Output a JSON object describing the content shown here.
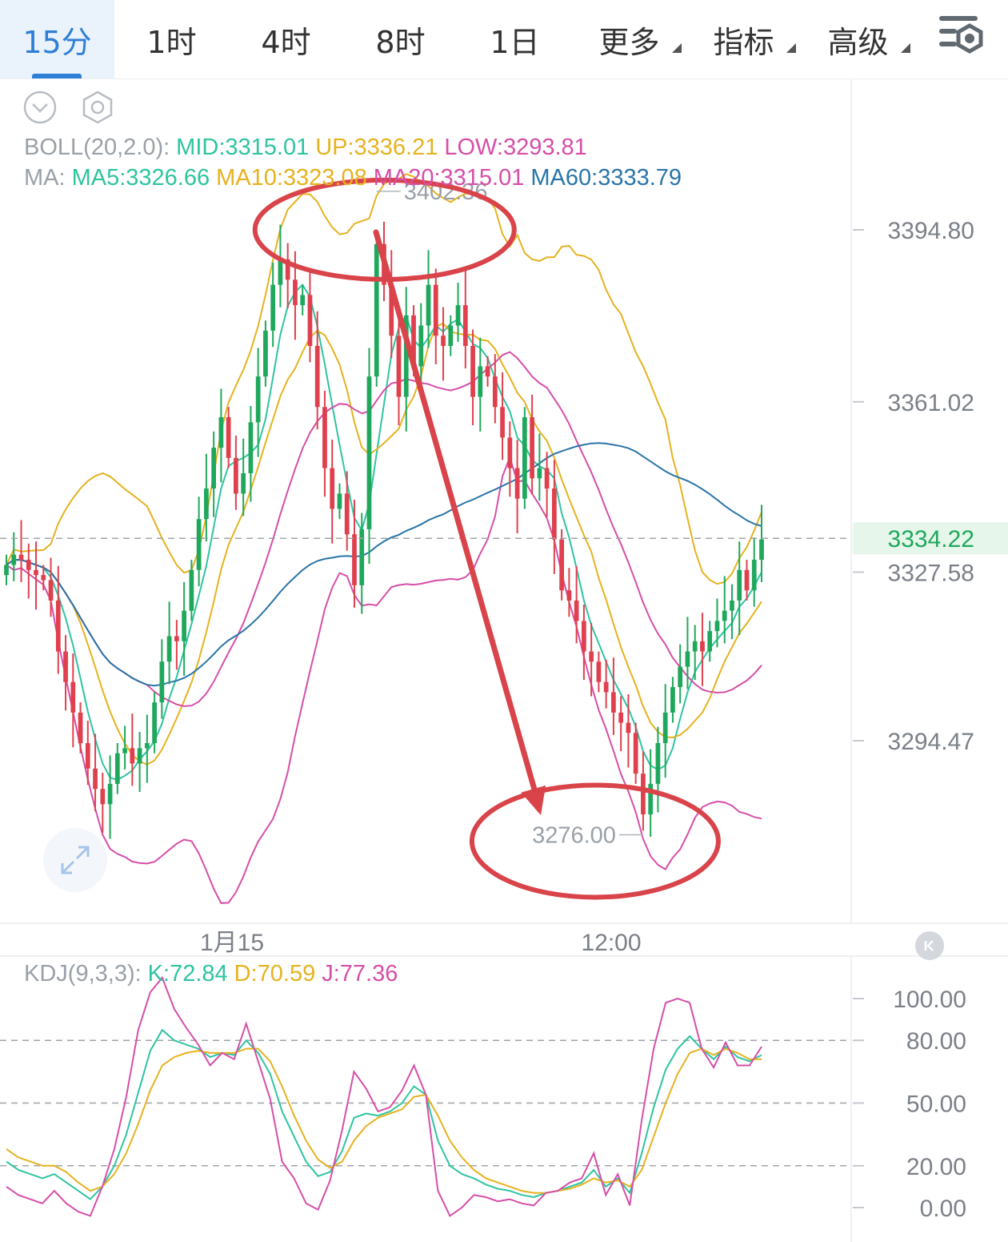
{
  "tabs": [
    {
      "label": "15分",
      "active": true
    },
    {
      "label": "1时"
    },
    {
      "label": "4时"
    },
    {
      "label": "8时"
    },
    {
      "label": "1日"
    },
    {
      "label": "更多",
      "dropdown": true
    },
    {
      "label": "指标",
      "dropdown": true
    },
    {
      "label": "高级",
      "dropdown": true
    }
  ],
  "icons": {
    "settings": "settings-gear-icon",
    "dropdown": "chevron-down-circle-icon",
    "hexagon": "hexagon-settings-icon",
    "expand": "expand-arrows-icon",
    "collapse": "collapse-left-icon"
  },
  "legend": {
    "boll_label": "BOLL(20,2.0):",
    "mid": "MID:3315.01",
    "up": "UP:3336.21",
    "low": "LOW:3293.81",
    "ma_label": "MA:",
    "ma5": "MA5:3326.66",
    "ma10": "MA10:3323.08",
    "ma20": "MA20:3315.01",
    "ma60": "MA60:3333.79",
    "kdj_label": "KDJ(9,3,3):",
    "k": "K:72.84",
    "d": "D:70.59",
    "j": "J:77.36"
  },
  "colors": {
    "up_candle": "#e0404d",
    "down_candle": "#1fa85c",
    "boll_outer": "#e6b21f",
    "ma_teal": "#2ec4a0",
    "ma_magenta": "#d64ea8",
    "ma60": "#2a75a8",
    "annotation": "#d9434a",
    "current_price_bg": "#e6f6ea",
    "current_price_text": "#1fa85c"
  },
  "chart_data": [
    {
      "type": "candlestick",
      "title": "",
      "y_axis_labels": [
        "3394.80",
        "3361.02",
        "3327.58",
        "3294.47"
      ],
      "y_axis_values": [
        3394.8,
        3361.02,
        3327.58,
        3294.47
      ],
      "current_price": "3334.22",
      "high_marker": "3402.36",
      "low_marker": "3276.00",
      "x_axis_labels": [
        "1月15",
        "12:00"
      ],
      "ylim": [
        3261,
        3414
      ],
      "closes": [
        3329,
        3331,
        3330,
        3328,
        3327,
        3326,
        3322,
        3312,
        3306,
        3300,
        3294,
        3289,
        3285,
        3282,
        3286,
        3292,
        3293,
        3290,
        3293,
        3294,
        3302,
        3310,
        3315,
        3314,
        3320,
        3328,
        3338,
        3344,
        3352,
        3358,
        3350,
        3343,
        3347,
        3357,
        3366,
        3375,
        3384,
        3389,
        3385,
        3380,
        3382,
        3372,
        3360,
        3348,
        3340,
        3343,
        3335,
        3325,
        3336,
        3366,
        3392,
        3384,
        3374,
        3362,
        3378,
        3368,
        3376,
        3384,
        3374,
        3372,
        3376,
        3380,
        3372,
        3362,
        3368,
        3366,
        3360,
        3354,
        3348,
        3342,
        3358,
        3346,
        3348,
        3344,
        3334,
        3324,
        3322,
        3318,
        3312,
        3310,
        3306,
        3304,
        3300,
        3298,
        3296,
        3288,
        3280,
        3286,
        3294,
        3300,
        3305,
        3309,
        3312,
        3314,
        3312,
        3316,
        3318,
        3320,
        3322,
        3328,
        3324,
        3330,
        3334
      ]
    },
    {
      "type": "line",
      "title": "",
      "y_axis_labels": [
        "100.00",
        "80.00",
        "50.00",
        "20.00",
        "0.00"
      ],
      "y_axis_values": [
        100,
        80,
        50,
        20,
        0
      ],
      "ylim": [
        -10,
        112
      ],
      "series": [
        {
          "name": "K",
          "values": [
            22,
            18,
            16,
            14,
            16,
            12,
            8,
            4,
            10,
            20,
            35,
            55,
            75,
            85,
            80,
            78,
            76,
            72,
            74,
            73,
            80,
            74,
            64,
            46,
            34,
            22,
            15,
            17,
            27,
            43,
            45,
            44,
            46,
            50,
            58,
            54,
            32,
            20,
            16,
            14,
            11,
            9,
            8,
            6,
            5,
            7,
            8,
            10,
            12,
            18,
            10,
            14,
            7,
            26,
            48,
            66,
            76,
            82,
            76,
            71,
            77,
            72,
            70,
            73
          ]
        },
        {
          "name": "D",
          "values": [
            28,
            24,
            22,
            20,
            20,
            17,
            12,
            8,
            10,
            16,
            26,
            40,
            56,
            68,
            72,
            74,
            75,
            74,
            74,
            74,
            76,
            76,
            70,
            58,
            44,
            32,
            23,
            19,
            22,
            32,
            39,
            43,
            45,
            47,
            53,
            54,
            44,
            32,
            24,
            18,
            14,
            12,
            10,
            8,
            7,
            7,
            8,
            9,
            11,
            14,
            12,
            13,
            10,
            18,
            34,
            50,
            64,
            74,
            76,
            73,
            76,
            74,
            71,
            71
          ]
        },
        {
          "name": "J",
          "values": [
            10,
            6,
            4,
            2,
            8,
            2,
            -2,
            -4,
            10,
            28,
            53,
            85,
            103,
            110,
            95,
            86,
            78,
            68,
            74,
            71,
            88,
            70,
            52,
            22,
            14,
            2,
            -1,
            13,
            37,
            65,
            57,
            46,
            48,
            56,
            68,
            54,
            8,
            -4,
            0,
            6,
            5,
            3,
            4,
            2,
            1,
            7,
            8,
            12,
            14,
            26,
            6,
            16,
            1,
            42,
            76,
            98,
            100,
            98,
            76,
            67,
            79,
            68,
            68,
            77
          ]
        }
      ],
      "reference_lines": [
        80,
        50,
        20
      ]
    }
  ]
}
